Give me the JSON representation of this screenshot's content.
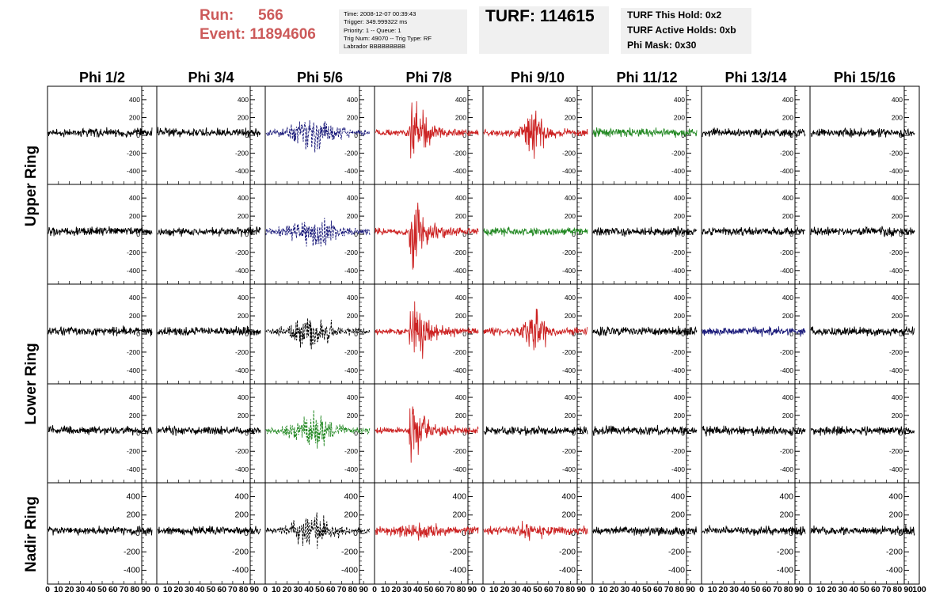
{
  "header": {
    "run_label": "Run:",
    "run_value": "566",
    "event_label": "Event:",
    "event_value": "11894606",
    "info_lines": [
      "Time: 2008-12-07 00:39:43",
      "Trigger: 349.999322 ms",
      "Priority: 1 -- Queue: 1",
      "Trig Num: 49070 -- Trig Type: RF",
      "Labrador BBBBBBBBB"
    ],
    "turf": "TURF: 114615",
    "turf_lines": [
      "TURF This Hold: 0x2",
      "TURF Active Holds: 0xb",
      "Phi Mask: 0x30"
    ]
  },
  "chart_data": {
    "type": "line",
    "column_titles": [
      "Phi 1/2",
      "Phi 3/4",
      "Phi 5/6",
      "Phi 7/8",
      "Phi 9/10",
      "Phi 11/12",
      "Phi 13/14",
      "Phi 15/16"
    ],
    "row_titles": [
      "Upper Ring",
      "Lower Ring",
      "Nadir Ring"
    ],
    "y_ticks": [
      400,
      200,
      0,
      -200,
      -400
    ],
    "y_tick_labels": [
      "400",
      "200",
      "0",
      "-200",
      "-400"
    ],
    "ylim": [
      -550,
      550
    ],
    "xlim": [
      0,
      100
    ],
    "x_tick_labels": [
      "0",
      "10",
      "20",
      "30",
      "40",
      "50",
      "60",
      "70",
      "80",
      "90",
      "100"
    ],
    "colors": {
      "black": "#000000",
      "red": "#cc2222",
      "blue": "#1a1a7a",
      "green": "#228822"
    },
    "panels": [
      [
        "black",
        "black",
        "blue-dash",
        "red-burst",
        "red-mid",
        "green",
        "black",
        "black"
      ],
      [
        "black",
        "black",
        "blue-dash",
        "red-burst",
        "green",
        "black",
        "black",
        "black"
      ],
      [
        "black",
        "black",
        "black-dash",
        "red-burst",
        "red-mid",
        "black",
        "blue",
        "black"
      ],
      [
        "black",
        "black",
        "green-dash",
        "red-burst",
        "black",
        "black",
        "black",
        "black"
      ],
      [
        "black",
        "black",
        "black-dash",
        "red-small",
        "red-small",
        "black",
        "black",
        "black"
      ]
    ]
  }
}
